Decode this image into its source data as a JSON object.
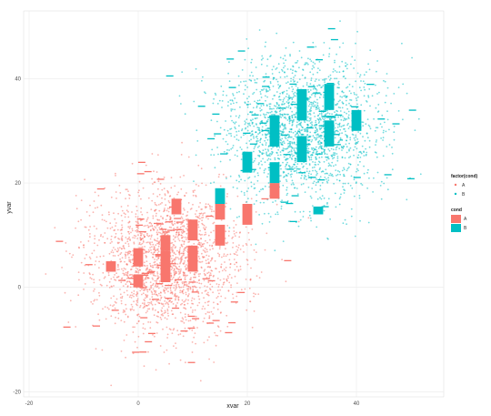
{
  "chart_data": {
    "type": "scatter",
    "title": "",
    "xlabel": "xvar",
    "ylabel": "yvar",
    "xlim": [
      -21,
      56
    ],
    "ylim": [
      -21,
      53
    ],
    "x_ticks": [
      -20,
      0,
      20,
      40
    ],
    "y_ticks": [
      -20,
      0,
      20,
      40
    ],
    "grid": true,
    "background": "#ffffff",
    "grid_color": "#ebebeb",
    "legend_position": "right",
    "legends": [
      {
        "title": "factor(cond)",
        "kind": "points",
        "entries": [
          "A",
          "B"
        ]
      },
      {
        "title": "cond",
        "kind": "fill",
        "entries": [
          "A",
          "B"
        ]
      }
    ],
    "series": [
      {
        "name": "A",
        "color": "#F8766D",
        "center": [
          5,
          5
        ],
        "spread": [
          7,
          7
        ],
        "n_points": 2000
      },
      {
        "name": "B",
        "color": "#00BFC4",
        "center": [
          30,
          30
        ],
        "spread": [
          7,
          7
        ],
        "n_points": 2000
      }
    ],
    "bars": {
      "A": [
        {
          "x": 0,
          "y": 0,
          "h": 2.5
        },
        {
          "x": 0,
          "y": 4,
          "h": 3.5
        },
        {
          "x": 5,
          "y": 1,
          "h": 6
        },
        {
          "x": 5,
          "y": 7,
          "h": 3
        },
        {
          "x": 10,
          "y": 3,
          "h": 5
        },
        {
          "x": 10,
          "y": 9,
          "h": 4
        },
        {
          "x": 15,
          "y": 8,
          "h": 4
        },
        {
          "x": 15,
          "y": 13,
          "h": 3.5
        },
        {
          "x": 20,
          "y": 12,
          "h": 4
        },
        {
          "x": 25,
          "y": 17,
          "h": 3
        },
        {
          "x": -5,
          "y": 3,
          "h": 2
        },
        {
          "x": 7,
          "y": 14,
          "h": 3
        }
      ],
      "B": [
        {
          "x": 25,
          "y": 20,
          "h": 4
        },
        {
          "x": 25,
          "y": 27,
          "h": 6
        },
        {
          "x": 30,
          "y": 24,
          "h": 5
        },
        {
          "x": 30,
          "y": 32,
          "h": 6
        },
        {
          "x": 35,
          "y": 27,
          "h": 5
        },
        {
          "x": 35,
          "y": 34,
          "h": 5
        },
        {
          "x": 40,
          "y": 30,
          "h": 4
        },
        {
          "x": 20,
          "y": 22,
          "h": 4
        },
        {
          "x": 15,
          "y": 16,
          "h": 3
        },
        {
          "x": 33,
          "y": 14,
          "h": 1.5
        }
      ]
    }
  }
}
